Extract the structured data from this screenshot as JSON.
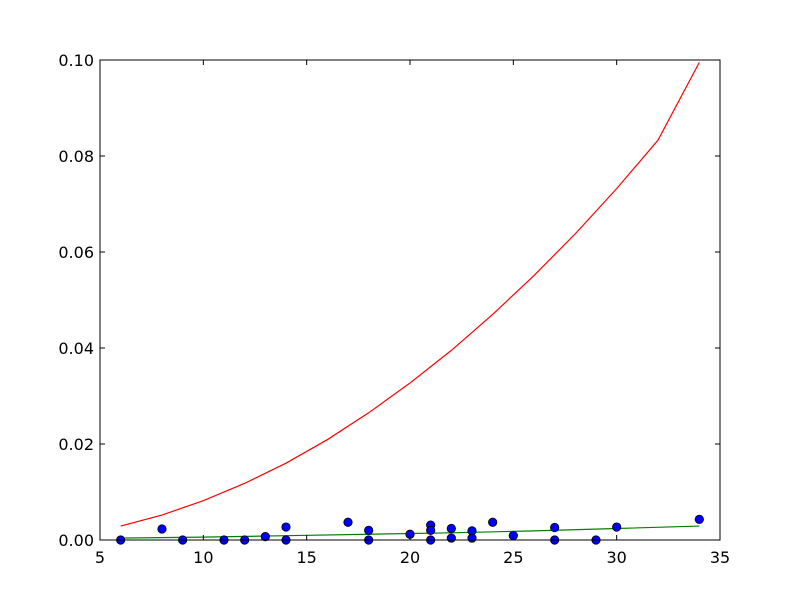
{
  "chart_data": {
    "type": "scatter",
    "title": "",
    "xlabel": "",
    "ylabel": "",
    "xlim": [
      5,
      35
    ],
    "ylim": [
      0,
      0.1
    ],
    "xticks": [
      5,
      10,
      15,
      20,
      25,
      30,
      35
    ],
    "xtick_labels": [
      "5",
      "10",
      "15",
      "20",
      "25",
      "30",
      "35"
    ],
    "yticks": [
      0,
      0.02,
      0.04,
      0.06,
      0.08,
      0.1
    ],
    "ytick_labels": [
      "0.00",
      "0.02",
      "0.04",
      "0.06",
      "0.08",
      "0.10"
    ],
    "grid": false,
    "points": {
      "color": "#0000ff",
      "x": [
        6,
        8,
        9,
        11,
        12,
        13,
        14,
        14,
        17,
        18,
        18,
        20,
        21,
        21,
        21,
        22,
        22,
        23,
        23,
        24,
        25,
        27,
        27,
        29,
        30,
        34
      ],
      "y": [
        0.0,
        0.0023,
        0.0,
        0.0,
        0.0,
        0.0007,
        0.0027,
        0.0,
        0.0037,
        0.002,
        0.0,
        0.0012,
        0.0031,
        0.002,
        0.0,
        0.0024,
        0.0004,
        0.0019,
        0.0004,
        0.0037,
        0.0009,
        0.0026,
        0.0,
        0.0,
        0.0027,
        0.0043
      ]
    },
    "lines": [
      {
        "color": "#ff0000",
        "x": [
          6,
          8,
          10,
          12,
          14,
          16,
          18,
          20,
          22,
          24,
          26,
          28,
          30,
          32,
          34
        ],
        "y": [
          0.0029,
          0.0052,
          0.0082,
          0.0118,
          0.016,
          0.0209,
          0.0265,
          0.0327,
          0.0395,
          0.047,
          0.0551,
          0.0638,
          0.0732,
          0.0833,
          0.0995
        ]
      },
      {
        "color": "#008000",
        "x": [
          6,
          10,
          14,
          18,
          22,
          26,
          30,
          34
        ],
        "y": [
          0.0004,
          0.0006,
          0.0009,
          0.0012,
          0.0015,
          0.0019,
          0.0024,
          0.0029
        ]
      }
    ]
  }
}
